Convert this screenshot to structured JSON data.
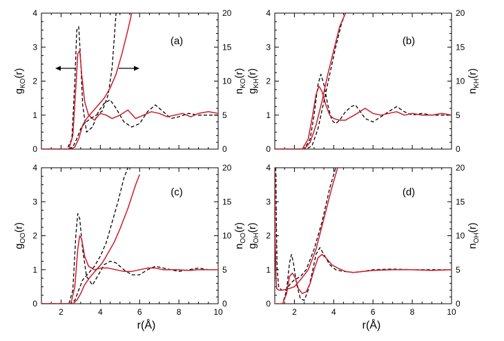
{
  "chart_data": [
    {
      "type": "line",
      "panel_label": "(a)",
      "ylabel_left": {
        "main": "g",
        "sub": "KO",
        "tail": "(r)"
      },
      "ylabel_right": {
        "main": "n",
        "sub": "KO",
        "tail": "(r)"
      },
      "xlim": [
        1,
        10
      ],
      "ylim_left": [
        0,
        4
      ],
      "ylim_right": [
        0,
        20
      ],
      "xticks": [],
      "yticks_left": [
        "0",
        "1",
        "2",
        "3",
        "4"
      ],
      "yticks_right": [
        "0",
        "5",
        "10",
        "15",
        "20"
      ],
      "arrows": true,
      "series": [
        {
          "style": "dashed",
          "color": "#000000",
          "axis": "left",
          "x": [
            1.0,
            2.3,
            2.55,
            2.7,
            2.8,
            2.9,
            3.0,
            3.1,
            3.3,
            3.6,
            3.9,
            4.2,
            4.5,
            4.8,
            5.2,
            5.6,
            6.0,
            6.4,
            6.8,
            7.2,
            7.6,
            8.0,
            8.5,
            9.0,
            9.5,
            10.0
          ],
          "y": [
            0,
            0,
            0.3,
            2.0,
            3.5,
            3.6,
            2.6,
            1.3,
            0.5,
            0.65,
            1.1,
            1.35,
            1.45,
            1.2,
            0.8,
            0.65,
            0.75,
            1.1,
            1.3,
            1.1,
            0.9,
            0.95,
            1.05,
            1.0,
            1.0,
            1.0
          ]
        },
        {
          "style": "solid",
          "color": "#cc1a2a",
          "axis": "left",
          "x": [
            1.0,
            2.4,
            2.6,
            2.75,
            2.85,
            2.95,
            3.05,
            3.2,
            3.4,
            3.7,
            4.0,
            4.3,
            4.6,
            5.0,
            5.4,
            5.8,
            6.2,
            6.6,
            7.0,
            7.4,
            7.8,
            8.2,
            8.6,
            9.0,
            9.5,
            10.0
          ],
          "y": [
            0,
            0,
            0.4,
            1.8,
            2.8,
            2.9,
            2.2,
            1.4,
            1.0,
            0.85,
            1.05,
            1.0,
            0.9,
            1.0,
            1.15,
            0.9,
            1.0,
            1.1,
            1.05,
            0.95,
            1.0,
            1.05,
            0.95,
            1.05,
            1.1,
            1.05
          ]
        },
        {
          "style": "dashed",
          "color": "#000000",
          "axis": "right",
          "x": [
            1.0,
            2.4,
            2.6,
            2.8,
            3.0,
            3.2,
            3.5,
            3.8,
            4.1,
            4.4,
            4.6,
            4.8
          ],
          "y": [
            0,
            0,
            0.3,
            1.5,
            3.0,
            3.8,
            4.5,
            5.0,
            5.6,
            8.0,
            12.0,
            20.0
          ]
        },
        {
          "style": "solid",
          "color": "#cc1a2a",
          "axis": "right",
          "x": [
            1.0,
            2.5,
            2.7,
            2.9,
            3.1,
            3.3,
            3.6,
            3.9,
            4.2,
            4.5,
            4.8,
            5.1,
            5.4,
            5.6
          ],
          "y": [
            0,
            0,
            0.3,
            1.5,
            3.5,
            4.5,
            5.5,
            6.5,
            7.5,
            9.0,
            11.0,
            14.0,
            17.5,
            20.0
          ]
        }
      ]
    },
    {
      "type": "line",
      "panel_label": "(b)",
      "ylabel_left": {
        "main": "g",
        "sub": "KH",
        "tail": "(r)"
      },
      "ylabel_right": {
        "main": "n",
        "sub": "KH",
        "tail": "(r)"
      },
      "xlim": [
        1,
        10
      ],
      "ylim_left": [
        0,
        4
      ],
      "ylim_right": [
        0,
        20
      ],
      "xticks": [],
      "yticks_left": [
        "0",
        "1",
        "2",
        "3",
        "4"
      ],
      "yticks_right": [
        "0",
        "5",
        "10",
        "15",
        "20"
      ],
      "arrows": false,
      "series": [
        {
          "style": "dashed",
          "color": "#000000",
          "axis": "left",
          "x": [
            1.0,
            2.5,
            2.8,
            3.0,
            3.2,
            3.35,
            3.5,
            3.7,
            3.9,
            4.1,
            4.3,
            4.6,
            4.9,
            5.1,
            5.3,
            5.6,
            6.0,
            6.4,
            6.8,
            7.2,
            7.6,
            8.0,
            8.5,
            9.0,
            9.5,
            10.0
          ],
          "y": [
            0,
            0,
            0.3,
            1.0,
            1.9,
            2.2,
            1.9,
            1.3,
            0.85,
            0.75,
            0.85,
            1.1,
            1.25,
            1.3,
            1.15,
            0.9,
            0.8,
            0.95,
            1.1,
            1.25,
            1.1,
            1.0,
            1.05,
            1.0,
            1.0,
            1.0
          ]
        },
        {
          "style": "solid",
          "color": "#cc1a2a",
          "axis": "left",
          "x": [
            1.0,
            2.4,
            2.7,
            2.9,
            3.1,
            3.25,
            3.4,
            3.6,
            3.8,
            4.0,
            4.3,
            4.6,
            4.9,
            5.2,
            5.6,
            6.0,
            6.4,
            6.8,
            7.2,
            7.6,
            8.0,
            8.5,
            9.0,
            9.5,
            10.0
          ],
          "y": [
            0,
            0,
            0.3,
            0.9,
            1.6,
            1.85,
            1.7,
            1.3,
            1.0,
            0.9,
            0.85,
            0.85,
            0.95,
            1.05,
            1.2,
            1.05,
            1.0,
            1.05,
            1.1,
            1.0,
            1.05,
            1.0,
            1.0,
            1.05,
            1.0
          ]
        },
        {
          "style": "dashed",
          "color": "#000000",
          "axis": "right",
          "x": [
            1.0,
            2.6,
            2.9,
            3.2,
            3.5,
            3.8,
            4.1,
            4.4,
            4.6
          ],
          "y": [
            0,
            0,
            0.5,
            3.0,
            7.0,
            11.0,
            15.0,
            18.5,
            20.0
          ]
        },
        {
          "style": "solid",
          "color": "#cc1a2a",
          "axis": "right",
          "x": [
            1.0,
            2.5,
            2.8,
            3.1,
            3.4,
            3.7,
            4.0,
            4.3,
            4.6
          ],
          "y": [
            0,
            0,
            1.0,
            3.5,
            7.0,
            11.0,
            14.5,
            18.0,
            20.0
          ]
        }
      ]
    },
    {
      "type": "line",
      "panel_label": "(c)",
      "ylabel_left": {
        "main": "g",
        "sub": "OO",
        "tail": "(r)"
      },
      "ylabel_right": {
        "main": "n",
        "sub": "OO",
        "tail": "(r)"
      },
      "xlim": [
        1,
        10
      ],
      "ylim_left": [
        0,
        4
      ],
      "ylim_right": [
        0,
        20
      ],
      "xticks": [],
      "yticks_left": [
        "0",
        "1",
        "2",
        "3",
        "4"
      ],
      "yticks_right": [
        "0",
        "5",
        "10",
        "15",
        "20"
      ],
      "arrows": false,
      "series": [
        {
          "style": "dashed",
          "color": "#000000",
          "axis": "left",
          "x": [
            1.0,
            2.4,
            2.6,
            2.75,
            2.85,
            2.95,
            3.1,
            3.3,
            3.6,
            3.9,
            4.2,
            4.5,
            4.8,
            5.2,
            5.6,
            6.0,
            6.4,
            6.8,
            7.2,
            7.6,
            8.0,
            8.5,
            9.0,
            9.5,
            10.0
          ],
          "y": [
            0,
            0,
            0.4,
            2.0,
            2.65,
            2.5,
            1.6,
            0.8,
            0.55,
            0.85,
            1.15,
            1.25,
            1.2,
            1.0,
            0.85,
            0.85,
            1.0,
            1.1,
            1.05,
            1.0,
            0.95,
            1.0,
            1.05,
            1.0,
            1.0
          ]
        },
        {
          "style": "solid",
          "color": "#cc1a2a",
          "axis": "left",
          "x": [
            1.0,
            2.5,
            2.7,
            2.85,
            2.95,
            3.05,
            3.2,
            3.4,
            3.7,
            4.0,
            4.4,
            4.8,
            5.2,
            5.6,
            6.0,
            6.4,
            6.8,
            7.2,
            7.6,
            8.0,
            8.5,
            9.0,
            9.5,
            10.0
          ],
          "y": [
            0,
            0,
            0.5,
            1.6,
            2.0,
            1.9,
            1.4,
            1.1,
            1.0,
            1.05,
            1.05,
            1.0,
            0.95,
            0.95,
            1.0,
            1.05,
            1.05,
            1.0,
            1.0,
            1.0,
            0.98,
            1.0,
            1.0,
            1.0
          ]
        },
        {
          "style": "dashed",
          "color": "#000000",
          "axis": "right",
          "x": [
            1.0,
            2.5,
            2.7,
            2.9,
            3.1,
            3.4,
            3.7,
            4.0,
            4.3,
            4.6,
            4.9,
            5.2,
            5.4
          ],
          "y": [
            0,
            0,
            0.5,
            2.0,
            3.5,
            4.5,
            5.5,
            7.0,
            9.0,
            12.0,
            15.0,
            18.5,
            20.0
          ]
        },
        {
          "style": "solid",
          "color": "#cc1a2a",
          "axis": "right",
          "x": [
            1.0,
            2.6,
            2.8,
            3.0,
            3.2,
            3.5,
            3.8,
            4.1,
            4.4,
            4.7,
            5.0,
            5.4,
            5.8,
            6.0
          ],
          "y": [
            0,
            0,
            0.5,
            1.5,
            2.8,
            4.0,
            5.0,
            6.0,
            7.5,
            9.0,
            11.0,
            14.0,
            17.5,
            19.0
          ]
        }
      ]
    },
    {
      "type": "line",
      "panel_label": "(d)",
      "ylabel_left": {
        "main": "g",
        "sub": "OH",
        "tail": "(r)"
      },
      "ylabel_right": {
        "main": "n",
        "sub": "OH",
        "tail": "(r)"
      },
      "xlim": [
        1,
        10
      ],
      "ylim_left": [
        0,
        4
      ],
      "ylim_right": [
        0,
        20
      ],
      "xticks": [],
      "yticks_left": [
        "0",
        "1",
        "2",
        "3",
        "4"
      ],
      "yticks_right": [
        "0",
        "5",
        "10",
        "15",
        "20"
      ],
      "arrows": false,
      "series": [
        {
          "style": "dashed",
          "color": "#000000",
          "axis": "left",
          "x": [
            1.0,
            1.4,
            1.6,
            1.75,
            1.85,
            1.95,
            2.1,
            2.3,
            2.5,
            2.7,
            2.9,
            3.1,
            3.3,
            3.5,
            3.8,
            4.1,
            4.5,
            5.0,
            5.5,
            6.0,
            7.0,
            8.0,
            9.0,
            10.0
          ],
          "y": [
            0,
            0,
            0.4,
            1.2,
            1.45,
            1.2,
            0.6,
            0.15,
            0.1,
            0.4,
            0.9,
            1.45,
            1.65,
            1.45,
            1.15,
            1.0,
            0.95,
            0.92,
            0.95,
            1.0,
            1.02,
            1.0,
            1.0,
            1.0
          ]
        },
        {
          "style": "solid",
          "color": "#cc1a2a",
          "axis": "left",
          "x": [
            1.0,
            1.4,
            1.6,
            1.75,
            1.9,
            2.05,
            2.2,
            2.4,
            2.6,
            2.8,
            3.0,
            3.2,
            3.4,
            3.6,
            3.9,
            4.2,
            4.6,
            5.0,
            5.5,
            6.0,
            7.0,
            8.0,
            9.0,
            10.0
          ],
          "y": [
            0,
            0,
            0.3,
            0.8,
            0.9,
            0.75,
            0.45,
            0.3,
            0.35,
            0.6,
            1.0,
            1.35,
            1.45,
            1.35,
            1.15,
            1.05,
            0.95,
            0.92,
            0.95,
            0.98,
            1.0,
            1.0,
            0.98,
            1.0
          ]
        },
        {
          "style": "dashed",
          "color": "#000000",
          "axis": "right",
          "x": [
            1.05,
            1.08,
            1.12,
            1.2,
            1.35,
            1.6,
            1.8,
            2.0,
            2.3,
            2.6,
            3.0,
            3.4,
            3.8,
            4.1
          ],
          "y": [
            20,
            12,
            5,
            2.5,
            2.0,
            2.0,
            3.0,
            3.5,
            4.0,
            5.0,
            8.0,
            12.0,
            17.0,
            20.0
          ]
        },
        {
          "style": "solid",
          "color": "#cc1a2a",
          "axis": "right",
          "x": [
            1.0,
            1.02,
            1.06,
            1.1,
            1.2,
            1.4,
            1.7,
            2.0,
            2.3,
            2.7,
            3.1,
            3.5,
            3.9,
            4.2
          ],
          "y": [
            20,
            10,
            4,
            2.2,
            2.0,
            2.0,
            2.2,
            2.5,
            3.5,
            5.0,
            8.0,
            12.5,
            17.0,
            20.0
          ]
        }
      ]
    }
  ],
  "xlabel": "r(Å)",
  "xtick_labels": [
    "2",
    "4",
    "6",
    "8",
    "10"
  ]
}
